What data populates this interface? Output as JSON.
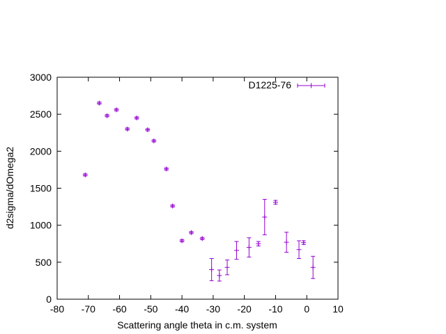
{
  "chart_data": {
    "type": "scatter",
    "title": "",
    "xlabel": "Scattering angle theta in c.m. system",
    "ylabel": "d2sigma/dOmega2",
    "xlim": [
      -80,
      10
    ],
    "ylim": [
      0,
      3000
    ],
    "xticks": [
      -80,
      -70,
      -60,
      -50,
      -40,
      -30,
      -20,
      -10,
      0,
      10
    ],
    "yticks": [
      0,
      500,
      1000,
      1500,
      2000,
      2500,
      3000
    ],
    "grid": false,
    "legend_position": "top-right",
    "series": [
      {
        "name": "D1225-76",
        "color": "#9400d3",
        "error_bars": "vertical",
        "points": [
          {
            "x": -71.0,
            "y": 1680,
            "err": 15
          },
          {
            "x": -66.5,
            "y": 2650,
            "err": 15
          },
          {
            "x": -64.0,
            "y": 2480,
            "err": 15
          },
          {
            "x": -61.0,
            "y": 2560,
            "err": 15
          },
          {
            "x": -57.5,
            "y": 2300,
            "err": 15
          },
          {
            "x": -54.5,
            "y": 2450,
            "err": 15
          },
          {
            "x": -51.0,
            "y": 2290,
            "err": 15
          },
          {
            "x": -49.0,
            "y": 2140,
            "err": 15
          },
          {
            "x": -45.0,
            "y": 1760,
            "err": 15
          },
          {
            "x": -43.0,
            "y": 1260,
            "err": 15
          },
          {
            "x": -40.0,
            "y": 790,
            "err": 15
          },
          {
            "x": -37.0,
            "y": 900,
            "err": 15
          },
          {
            "x": -33.5,
            "y": 820,
            "err": 15
          },
          {
            "x": -30.5,
            "y": 400,
            "err": 150
          },
          {
            "x": -28.0,
            "y": 320,
            "err": 75
          },
          {
            "x": -25.5,
            "y": 430,
            "err": 100
          },
          {
            "x": -22.5,
            "y": 660,
            "err": 120
          },
          {
            "x": -18.5,
            "y": 700,
            "err": 130
          },
          {
            "x": -15.5,
            "y": 750,
            "err": 30
          },
          {
            "x": -13.5,
            "y": 1110,
            "err": 240
          },
          {
            "x": -10.0,
            "y": 1310,
            "err": 25
          },
          {
            "x": -6.5,
            "y": 770,
            "err": 135
          },
          {
            "x": -2.5,
            "y": 670,
            "err": 120
          },
          {
            "x": -1.0,
            "y": 765,
            "err": 25
          },
          {
            "x": 2.0,
            "y": 430,
            "err": 150
          }
        ]
      }
    ]
  }
}
